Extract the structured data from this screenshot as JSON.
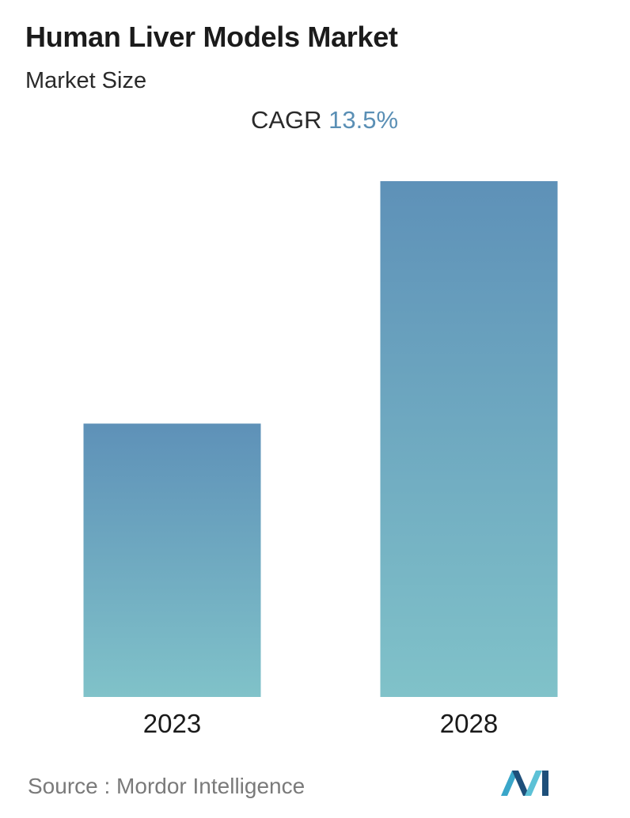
{
  "header": {
    "title": "Human Liver Models Market",
    "subtitle": "Market Size",
    "cagr_label": "CAGR",
    "cagr_value": "13.5%"
  },
  "footer": {
    "source_text": "Source :  Mordor Intelligence"
  },
  "logo": {
    "name": "mordor-intelligence-logo-icon",
    "colors": [
      "#1e4f7a",
      "#3aa6c9",
      "#5cc1d6"
    ]
  },
  "colors": {
    "bar_top": "#5e91b8",
    "bar_bottom": "#80c2c9",
    "cagr_accent": "#5a8fb5"
  },
  "chart_data": {
    "type": "bar",
    "categories": [
      "2023",
      "2028"
    ],
    "values": [
      53,
      100
    ],
    "value_note": "relative heights only, no axis values shown",
    "title": "Human Liver Models Market",
    "subtitle": "Market Size",
    "xlabel": "",
    "ylabel": "",
    "ylim": [
      0,
      100
    ],
    "grid": false,
    "legend": "none"
  }
}
